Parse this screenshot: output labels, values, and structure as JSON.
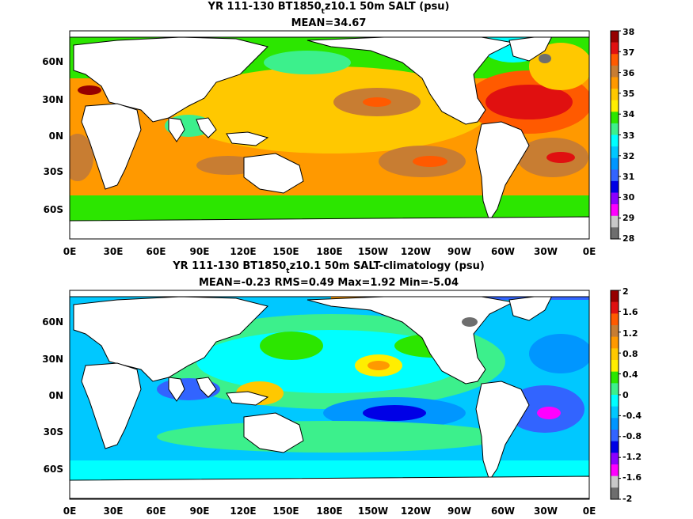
{
  "panels": [
    {
      "title_pre": "YR 111-130 BT1850",
      "title_sub": "t",
      "title_post": "z10.1 50m SALT (psu)",
      "stats": "MEAN=34.67",
      "colorbar": {
        "labels": [
          "38",
          "37",
          "36",
          "35",
          "34",
          "33",
          "32",
          "31",
          "30",
          "29",
          "28"
        ],
        "colors": [
          "#960000",
          "#e01010",
          "#ff5a00",
          "#c87d32",
          "#ff9900",
          "#ffc800",
          "#ffee00",
          "#2ce600",
          "#3cf08c",
          "#00ffff",
          "#00c8ff",
          "#0096ff",
          "#3264ff",
          "#0000e6",
          "#8c00ff",
          "#ff00ff",
          "#c8c8c8",
          "#6e6e6e"
        ]
      }
    },
    {
      "title_pre": "YR 111-130 BT1850",
      "title_sub": "t",
      "title_post": "z10.1 50m SALT-climatology (psu)",
      "stats": "MEAN=-0.23   RMS=0.49   Max=1.92   Min=-5.04",
      "colorbar": {
        "labels": [
          "2",
          "1.6",
          "1.2",
          "0.8",
          "0.4",
          "0",
          "-0.4",
          "-0.8",
          "-1.2",
          "-1.6",
          "-2"
        ],
        "colors": [
          "#960000",
          "#e01010",
          "#ff5a00",
          "#c87d32",
          "#ff9900",
          "#ffc800",
          "#ffee00",
          "#2ce600",
          "#3cf08c",
          "#00ffff",
          "#00c8ff",
          "#0096ff",
          "#3264ff",
          "#0000e6",
          "#8c00ff",
          "#ff00ff",
          "#c8c8c8",
          "#6e6e6e"
        ]
      }
    }
  ],
  "axes": {
    "x_ticks": [
      "0E",
      "30E",
      "60E",
      "90E",
      "120E",
      "150E",
      "180E",
      "150W",
      "120W",
      "90W",
      "60W",
      "30W",
      "0E"
    ],
    "y_ticks": [
      "60N",
      "30N",
      "0N",
      "30S",
      "60S"
    ]
  }
}
